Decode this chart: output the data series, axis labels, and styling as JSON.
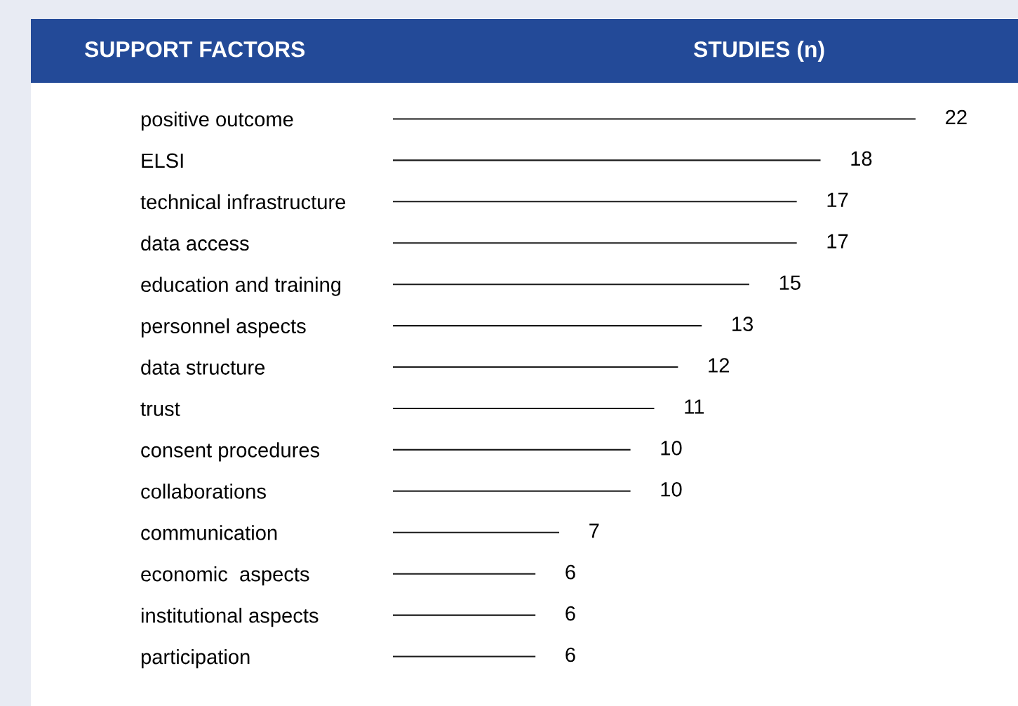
{
  "chart_data": {
    "type": "bar",
    "orientation": "horizontal",
    "ylabel": "SUPPORT FACTORS",
    "xlabel": "STUDIES (n)",
    "categories": [
      "positive outcome",
      "ELSI",
      "technical infrastructure",
      "data access",
      "education and training",
      "personnel aspects",
      "data structure",
      "trust",
      "consent procedures",
      "collaborations",
      "communication",
      "economic  aspects",
      "institutional aspects",
      "participation"
    ],
    "values": [
      22,
      18,
      17,
      17,
      15,
      13,
      12,
      11,
      10,
      10,
      7,
      6,
      6,
      6
    ],
    "color": "#1a1a1a",
    "xlim": [
      0,
      22
    ],
    "data_labels": true,
    "tick_labels": "y",
    "grid": false,
    "legend": false
  }
}
